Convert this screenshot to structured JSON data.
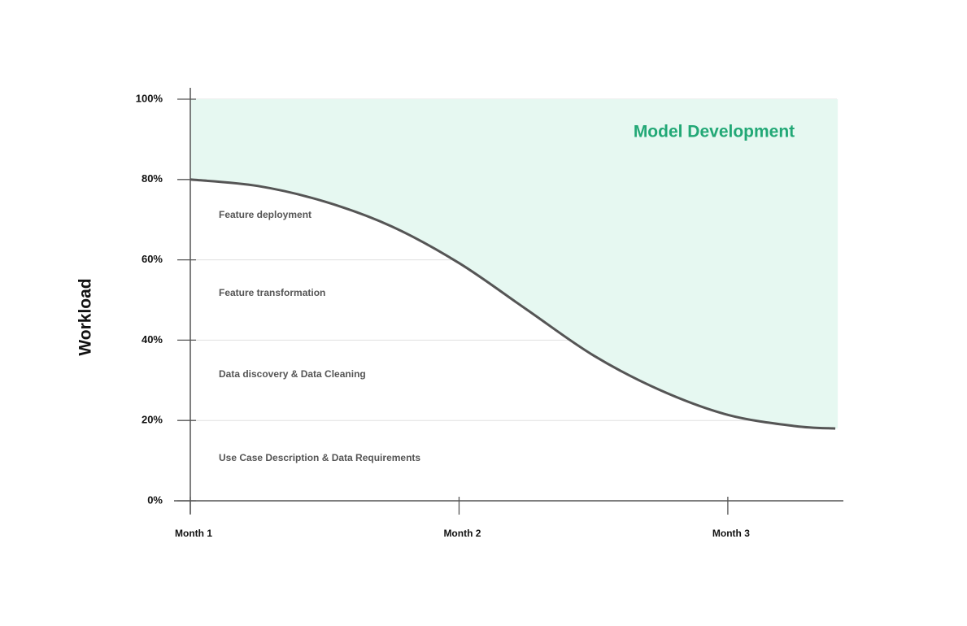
{
  "chart_data": {
    "type": "area",
    "ylabel": "Workload",
    "area_label": "Model Development",
    "color": "#555555",
    "area_color": "#e6f8f1",
    "area_label_color": "#22a876",
    "x": [
      1.0,
      1.25,
      1.5,
      1.75,
      2.0,
      2.25,
      2.5,
      2.75,
      3.0,
      3.25,
      3.4
    ],
    "values": [
      80,
      78.4,
      74.5,
      68.3,
      59.2,
      47.7,
      36.2,
      27.5,
      21.4,
      18.6,
      18
    ],
    "xlim": [
      1,
      3.43
    ],
    "xticks": [
      {
        "value": 1,
        "label": "Month 1"
      },
      {
        "value": 2,
        "label": "Month 2"
      },
      {
        "value": 3,
        "label": "Month 3"
      }
    ],
    "ylim": [
      0,
      100
    ],
    "yticks": [
      {
        "value": 0,
        "label": "0%"
      },
      {
        "value": 20,
        "label": "20%"
      },
      {
        "value": 40,
        "label": "40%"
      },
      {
        "value": 60,
        "label": "60%"
      },
      {
        "value": 80,
        "label": "80%"
      },
      {
        "value": 100,
        "label": "100%"
      }
    ],
    "grid": true,
    "annotations": [
      "Feature deployment",
      "Feature transformation",
      "Data discovery & Data Cleaning",
      "Use Case Description & Data Requirements"
    ]
  }
}
